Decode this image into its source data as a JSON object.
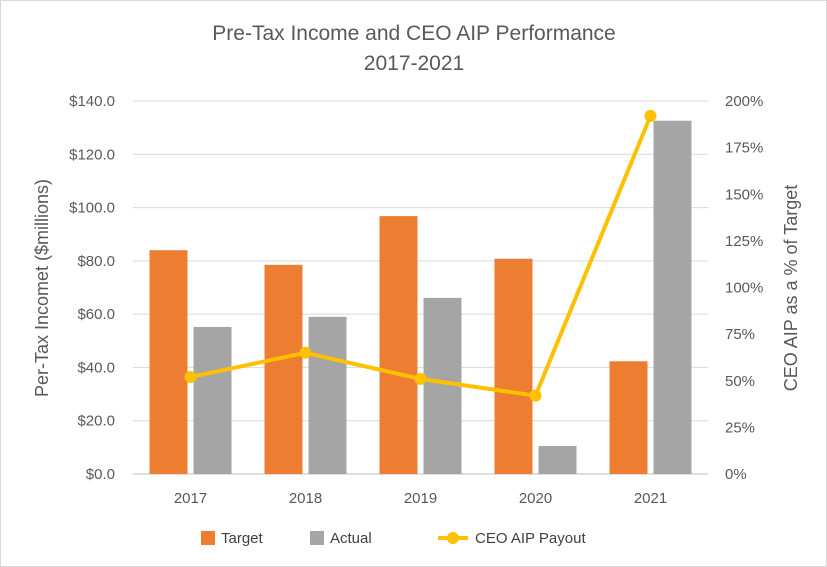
{
  "chart_data": {
    "type": "bar+line",
    "title_lines": [
      "Pre-Tax Income and CEO AIP Performance",
      "2017-2021"
    ],
    "categories": [
      "2017",
      "2018",
      "2019",
      "2020",
      "2021"
    ],
    "series": [
      {
        "name": "Target",
        "kind": "bar",
        "axis": "left",
        "color": "#ED7D31",
        "values": [
          84.0,
          78.5,
          96.8,
          80.8,
          42.3
        ]
      },
      {
        "name": "Actual",
        "kind": "bar",
        "axis": "left",
        "color": "#A5A5A5",
        "values": [
          55.2,
          59.0,
          66.1,
          10.5,
          132.6
        ]
      },
      {
        "name": "CEO AIP Payout",
        "kind": "line",
        "axis": "right",
        "color": "#FFC000",
        "values": [
          52,
          65,
          51,
          42,
          192
        ]
      }
    ],
    "ylabel": "Per-Tax Incomet ($millions)",
    "y2label": "CEO AIP as a % of Target",
    "ylim": [
      0,
      140
    ],
    "y2lim": [
      0,
      200
    ],
    "yticks": [
      "$0.0",
      "$20.0",
      "$40.0",
      "$60.0",
      "$80.0",
      "$100.0",
      "$120.0",
      "$140.0"
    ],
    "y2ticks": [
      "0%",
      "25%",
      "50%",
      "75%",
      "100%",
      "125%",
      "150%",
      "175%",
      "200%"
    ],
    "legend_position": "bottom",
    "grid": true
  }
}
